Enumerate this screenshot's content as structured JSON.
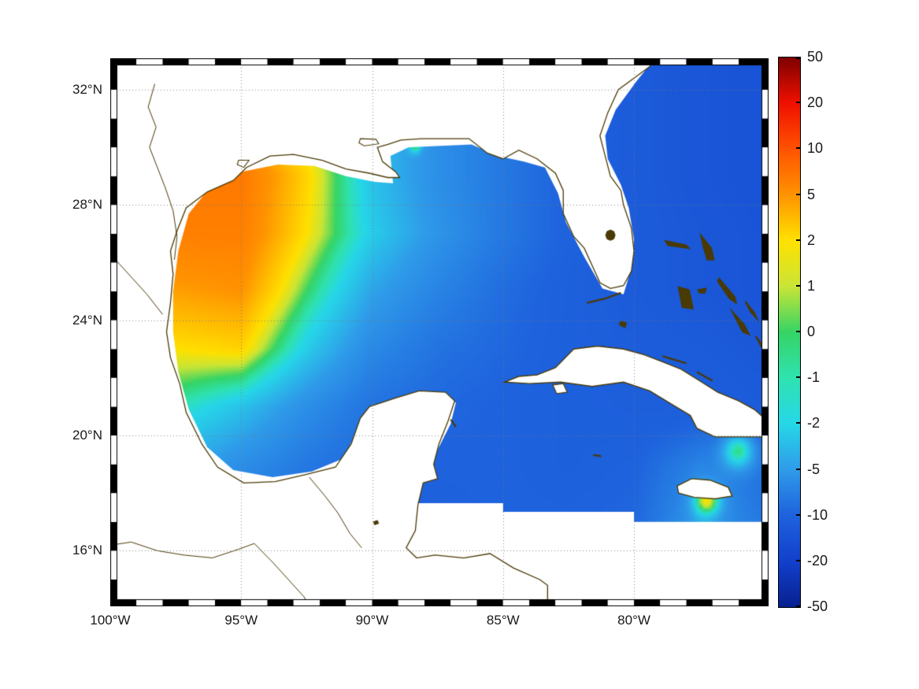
{
  "figure": {
    "background": "#ffffff",
    "coast_color": "#4a3a05",
    "grid_color": "#828282",
    "label_color": "#191919",
    "frame_color": "#000000"
  },
  "axes": {
    "lon_min": -100,
    "lon_max": -74.86,
    "lat_min": 14.07,
    "lat_max": 33.09,
    "lat_tick_values": [
      32,
      28,
      24,
      20,
      16
    ],
    "lat_tick_labels": [
      "32°N",
      "28°N",
      "24°N",
      "20°N",
      "16°N"
    ],
    "lon_tick_values": [
      -100,
      -95,
      -90,
      -85,
      -80
    ],
    "lon_tick_labels": [
      "100°W",
      "95°W",
      "90°W",
      "85°W",
      "80°W"
    ]
  },
  "colorbar": {
    "tick_labels": [
      "50",
      "20",
      "10",
      "5",
      "2",
      "1",
      "0",
      "-1",
      "-2",
      "-5",
      "-10",
      "-20",
      "-50"
    ],
    "tick_values": [
      50,
      20,
      10,
      5,
      2,
      1,
      0,
      -1,
      -2,
      -5,
      -10,
      -20,
      -50
    ],
    "tick_colors": [
      "#7e0000",
      "#f01000",
      "#ff5200",
      "#ff9300",
      "#ffe100",
      "#c9e536",
      "#35d465",
      "#2fe2b0",
      "#26d7e8",
      "#2f9be9",
      "#1e62dd",
      "#1240cc",
      "#082090"
    ]
  },
  "chart_data": {
    "type": "heatmap",
    "title": "",
    "region": "Gulf of Mexico, western Caribbean and adjacent Atlantic",
    "colorscale": "nonlinear diverging scale, evenly spaced ticks at [50,20,10,5,2,1,0,-1,-2,-5,-10,-20,-50]",
    "features_summary": "Positive anomaly (orange, about +5 to +7) over the northwestern Gulf of Mexico; near-zero yellow-green transition band running SW-NE from about (97W,23N) to (92W,30N); weakly negative cyan band; uniformly negative (blue, about -8 to -15) eastern Gulf, Caribbean and Atlantic; small positive spots near (76W,19.5N), (77.2W,17.8N) and at the coast near (88.3W,30N); white areas are land or no data, south boundary of data steps near 17-17.6N.",
    "grid": {
      "lons": [
        -100,
        -97.5,
        -95,
        -92.5,
        -90,
        -87.5,
        -85,
        -82.5,
        -80,
        -77.5,
        -75
      ],
      "lats": [
        33,
        31,
        29,
        27,
        25,
        23,
        21,
        19,
        17,
        15
      ],
      "values": [
        [
          5,
          5,
          3,
          0,
          -3,
          -6,
          -8,
          -10,
          -12,
          -13.5,
          -14.5
        ],
        [
          6,
          6,
          4.5,
          1,
          -3,
          -6,
          -8,
          -10,
          -12,
          -13.5,
          -14.5
        ],
        [
          6.5,
          7,
          7,
          2.5,
          -3,
          -6,
          -8,
          -10,
          -12,
          -13.5,
          -14.5
        ],
        [
          6,
          6.5,
          6.5,
          2,
          -2.5,
          -5.5,
          -8,
          -10,
          -12,
          -13,
          -14
        ],
        [
          4,
          4.5,
          5,
          0,
          -4.5,
          -7,
          -9,
          -10.5,
          -12,
          -13,
          -14
        ],
        [
          2,
          2,
          2.5,
          -2.5,
          -6.5,
          -8.5,
          -9.5,
          -10.5,
          -11.5,
          -12,
          -13
        ],
        [
          0,
          -1,
          -3,
          -6,
          -8.5,
          -9.5,
          -10,
          -10.5,
          -11,
          -11,
          -12
        ],
        [
          -2,
          -4,
          -6,
          -8,
          -9.5,
          -10,
          -10,
          -10.5,
          -10,
          -7,
          -9
        ],
        [
          -4,
          -6,
          -8,
          -9,
          -10,
          -10.5,
          -10,
          -10,
          -9.5,
          -5,
          -8
        ],
        [
          -5,
          -7,
          -9,
          -10,
          -10.5,
          -11,
          -10.5,
          -10,
          -9.5,
          -7,
          -9
        ]
      ]
    },
    "spots": [
      {
        "lon": -88.35,
        "lat": 30.02,
        "amp": 5,
        "sigma": 0.16
      },
      {
        "lon": -76.0,
        "lat": 19.5,
        "amp": 8.5,
        "sigma": 0.5
      },
      {
        "lon": -77.2,
        "lat": 17.75,
        "amp": 8,
        "sigma": 0.4
      }
    ],
    "data_region": [
      [
        -79.1,
        33.2
      ],
      [
        -74.7,
        33.2
      ],
      [
        -74.7,
        17.0
      ],
      [
        -80.0,
        17.0
      ],
      [
        -80.0,
        17.35
      ],
      [
        -85.0,
        17.35
      ],
      [
        -85.0,
        17.65
      ],
      [
        -89.3,
        17.65
      ],
      [
        -88.4,
        18.0
      ],
      [
        -87.8,
        18.6
      ],
      [
        -87.5,
        19.5
      ],
      [
        -87.0,
        20.4
      ],
      [
        -86.8,
        21.15
      ],
      [
        -87.6,
        21.25
      ],
      [
        -88.8,
        21.3
      ],
      [
        -90.0,
        21.05
      ],
      [
        -90.5,
        20.3
      ],
      [
        -91.1,
        19.2
      ],
      [
        -92.3,
        18.75
      ],
      [
        -93.8,
        18.55
      ],
      [
        -95.3,
        18.8
      ],
      [
        -96.3,
        19.6
      ],
      [
        -97.0,
        20.9
      ],
      [
        -97.4,
        22.2
      ],
      [
        -97.6,
        23.6
      ],
      [
        -97.6,
        25.0
      ],
      [
        -97.4,
        26.4
      ],
      [
        -97.0,
        27.7
      ],
      [
        -96.2,
        28.6
      ],
      [
        -95.0,
        29.15
      ],
      [
        -93.6,
        29.4
      ],
      [
        -92.2,
        29.35
      ],
      [
        -91.0,
        29.0
      ],
      [
        -89.9,
        28.8
      ],
      [
        -89.2,
        28.75
      ],
      [
        -89.3,
        29.7
      ],
      [
        -88.6,
        30.0
      ],
      [
        -87.4,
        30.05
      ],
      [
        -86.2,
        30.1
      ],
      [
        -85.2,
        29.7
      ],
      [
        -84.2,
        29.5
      ],
      [
        -83.4,
        29.3
      ],
      [
        -82.9,
        28.4
      ],
      [
        -82.6,
        27.4
      ],
      [
        -81.9,
        26.2
      ],
      [
        -81.2,
        25.1
      ],
      [
        -80.4,
        24.9
      ],
      [
        -80.1,
        25.8
      ],
      [
        -80.0,
        26.8
      ],
      [
        -80.2,
        27.9
      ],
      [
        -80.5,
        28.7
      ],
      [
        -81.0,
        29.6
      ],
      [
        -81.1,
        30.4
      ],
      [
        -80.7,
        31.3
      ],
      [
        -79.9,
        32.3
      ]
    ]
  },
  "geography": {
    "mainland": [
      [
        -100.3,
        33.3
      ],
      [
        -79.0,
        33.3
      ],
      [
        -79.4,
        32.8
      ],
      [
        -80.0,
        32.4
      ],
      [
        -80.6,
        32.0
      ],
      [
        -81.0,
        31.2
      ],
      [
        -81.3,
        30.4
      ],
      [
        -81.1,
        29.7
      ],
      [
        -80.9,
        29.0
      ],
      [
        -80.5,
        28.5
      ],
      [
        -80.4,
        28.0
      ],
      [
        -80.1,
        27.2
      ],
      [
        -80.0,
        26.4
      ],
      [
        -80.1,
        25.7
      ],
      [
        -80.4,
        25.2
      ],
      [
        -80.9,
        25.1
      ],
      [
        -81.3,
        25.3
      ],
      [
        -81.6,
        25.9
      ],
      [
        -81.9,
        26.5
      ],
      [
        -82.3,
        26.9
      ],
      [
        -82.7,
        27.7
      ],
      [
        -82.7,
        28.5
      ],
      [
        -83.0,
        29.1
      ],
      [
        -83.7,
        29.6
      ],
      [
        -84.4,
        29.9
      ],
      [
        -85.0,
        29.6
      ],
      [
        -85.6,
        29.8
      ],
      [
        -86.3,
        30.3
      ],
      [
        -87.3,
        30.3
      ],
      [
        -88.1,
        30.3
      ],
      [
        -88.9,
        30.25
      ],
      [
        -89.4,
        30.1
      ],
      [
        -89.8,
        30.0
      ],
      [
        -89.6,
        29.5
      ],
      [
        -89.1,
        29.15
      ],
      [
        -88.95,
        28.95
      ],
      [
        -89.4,
        28.95
      ],
      [
        -90.1,
        29.1
      ],
      [
        -91.0,
        29.25
      ],
      [
        -91.9,
        29.55
      ],
      [
        -93.0,
        29.75
      ],
      [
        -93.9,
        29.7
      ],
      [
        -94.8,
        29.3
      ],
      [
        -95.3,
        28.85
      ],
      [
        -96.3,
        28.45
      ],
      [
        -97.1,
        27.9
      ],
      [
        -97.45,
        27.1
      ],
      [
        -97.7,
        26.4
      ],
      [
        -97.6,
        25.6
      ],
      [
        -97.7,
        24.6
      ],
      [
        -97.85,
        23.6
      ],
      [
        -97.7,
        22.7
      ],
      [
        -97.35,
        21.8
      ],
      [
        -97.1,
        20.8
      ],
      [
        -96.5,
        19.7
      ],
      [
        -95.9,
        18.9
      ],
      [
        -94.9,
        18.35
      ],
      [
        -93.7,
        18.4
      ],
      [
        -92.5,
        18.65
      ],
      [
        -91.4,
        18.9
      ],
      [
        -90.8,
        19.7
      ],
      [
        -90.45,
        20.6
      ],
      [
        -90.1,
        21.0
      ],
      [
        -89.1,
        21.3
      ],
      [
        -88.2,
        21.55
      ],
      [
        -87.2,
        21.5
      ],
      [
        -86.85,
        21.2
      ],
      [
        -87.1,
        20.5
      ],
      [
        -87.45,
        19.7
      ],
      [
        -87.65,
        19.0
      ],
      [
        -87.5,
        18.5
      ],
      [
        -88.05,
        18.35
      ],
      [
        -88.25,
        17.6
      ],
      [
        -88.35,
        16.7
      ],
      [
        -88.7,
        16.1
      ],
      [
        -88.3,
        15.75
      ],
      [
        -87.6,
        15.85
      ],
      [
        -86.5,
        15.75
      ],
      [
        -85.5,
        15.9
      ],
      [
        -84.6,
        15.4
      ],
      [
        -83.6,
        15.0
      ],
      [
        -83.3,
        14.8
      ],
      [
        -83.3,
        13.9
      ],
      [
        -100.3,
        13.9
      ]
    ],
    "cuba": [
      [
        -84.95,
        21.85
      ],
      [
        -84.4,
        22.05
      ],
      [
        -83.7,
        22.1
      ],
      [
        -83.0,
        22.35
      ],
      [
        -82.3,
        23.0
      ],
      [
        -81.4,
        23.1
      ],
      [
        -80.4,
        23.0
      ],
      [
        -79.6,
        22.8
      ],
      [
        -78.9,
        22.55
      ],
      [
        -78.2,
        22.3
      ],
      [
        -77.5,
        21.9
      ],
      [
        -76.8,
        21.5
      ],
      [
        -76.0,
        21.2
      ],
      [
        -75.4,
        20.9
      ],
      [
        -74.9,
        20.5
      ],
      [
        -74.75,
        20.1
      ],
      [
        -75.1,
        19.95
      ],
      [
        -75.9,
        19.95
      ],
      [
        -76.9,
        19.95
      ],
      [
        -77.6,
        20.25
      ],
      [
        -77.85,
        20.7
      ],
      [
        -78.5,
        21.05
      ],
      [
        -79.4,
        21.55
      ],
      [
        -80.4,
        21.85
      ],
      [
        -81.6,
        21.7
      ],
      [
        -82.8,
        21.85
      ],
      [
        -84.0,
        21.8
      ]
    ],
    "isle_of_youth": [
      [
        -83.1,
        21.75
      ],
      [
        -82.7,
        21.8
      ],
      [
        -82.55,
        21.5
      ],
      [
        -82.95,
        21.45
      ]
    ],
    "jamaica": [
      [
        -78.35,
        18.25
      ],
      [
        -77.8,
        18.5
      ],
      [
        -77.1,
        18.45
      ],
      [
        -76.4,
        18.2
      ],
      [
        -76.25,
        17.9
      ],
      [
        -76.9,
        17.8
      ],
      [
        -77.7,
        17.85
      ],
      [
        -78.3,
        18.0
      ]
    ],
    "hispaniola_edge": [
      [
        [
          -74.86,
          20.1
        ],
        [
          -74.95,
          19.6
        ],
        [
          -74.9,
          19.2
        ],
        [
          -75.0,
          18.6
        ],
        [
          -74.86,
          18.45
        ]
      ],
      [
        [
          -74.86,
          18.45
        ],
        [
          -75.05,
          18.35
        ],
        [
          -74.86,
          18.2
        ]
      ]
    ],
    "bahamas": [
      [
        [
          -78.8,
          26.75
        ],
        [
          -78.0,
          26.6
        ],
        [
          -77.9,
          26.5
        ],
        [
          -78.7,
          26.6
        ]
      ],
      [
        [
          -77.45,
          26.95
        ],
        [
          -77.05,
          26.5
        ],
        [
          -76.95,
          26.1
        ],
        [
          -77.2,
          26.1
        ],
        [
          -77.35,
          26.55
        ]
      ],
      [
        [
          -78.3,
          25.15
        ],
        [
          -77.9,
          25.05
        ],
        [
          -77.75,
          24.4
        ],
        [
          -78.15,
          24.45
        ]
      ],
      [
        [
          -77.55,
          25.05
        ],
        [
          -77.25,
          25.1
        ],
        [
          -77.3,
          24.95
        ],
        [
          -77.5,
          24.95
        ]
      ],
      [
        [
          -76.75,
          25.45
        ],
        [
          -76.15,
          24.8
        ],
        [
          -76.1,
          24.6
        ],
        [
          -76.35,
          24.75
        ],
        [
          -76.8,
          25.35
        ]
      ],
      [
        [
          -75.75,
          24.65
        ],
        [
          -75.4,
          24.25
        ],
        [
          -75.3,
          24.05
        ],
        [
          -75.55,
          24.3
        ]
      ],
      [
        [
          -76.25,
          24.3
        ],
        [
          -75.8,
          23.85
        ],
        [
          -75.6,
          23.5
        ],
        [
          -75.85,
          23.6
        ]
      ],
      [
        [
          -75.35,
          23.45
        ],
        [
          -74.95,
          22.95
        ],
        [
          -74.85,
          22.75
        ],
        [
          -75.15,
          23.1
        ]
      ],
      [
        [
          -80.5,
          23.95
        ],
        [
          -80.3,
          23.9
        ],
        [
          -80.35,
          23.75
        ],
        [
          -80.55,
          23.85
        ]
      ]
    ],
    "island_strokes": [
      [
        [
          -78.9,
          22.75
        ],
        [
          -78.0,
          22.5
        ]
      ],
      [
        [
          -77.6,
          22.2
        ],
        [
          -77.0,
          21.9
        ]
      ],
      [
        [
          -87.0,
          20.55
        ],
        [
          -86.8,
          20.3
        ]
      ],
      [
        [
          -81.55,
          19.32
        ],
        [
          -81.25,
          19.28
        ]
      ],
      [
        [
          -80.5,
          24.95
        ],
        [
          -81.1,
          24.75
        ],
        [
          -81.8,
          24.6
        ]
      ]
    ],
    "lakes_outline": [
      [
        [
          -90.45,
          30.3
        ],
        [
          -89.85,
          30.28
        ],
        [
          -89.75,
          30.12
        ],
        [
          -90.3,
          30.05
        ],
        [
          -90.5,
          30.15
        ]
      ],
      [
        [
          -95.1,
          29.55
        ],
        [
          -94.7,
          29.55
        ],
        [
          -94.9,
          29.3
        ],
        [
          -95.15,
          29.4
        ]
      ]
    ],
    "lakes_filled": [
      [
        [
          -80.72,
          26.95
        ],
        [
          -80.77,
          27.08
        ],
        [
          -80.9,
          27.13
        ],
        [
          -81.03,
          27.08
        ],
        [
          -81.08,
          26.95
        ],
        [
          -81.03,
          26.82
        ],
        [
          -80.9,
          26.77
        ],
        [
          -80.77,
          26.82
        ]
      ],
      [
        [
          -89.95,
          17.0
        ],
        [
          -89.8,
          17.05
        ],
        [
          -89.75,
          16.95
        ],
        [
          -89.9,
          16.9
        ]
      ]
    ],
    "rivers": [
      [
        [
          -98.3,
          32.2
        ],
        [
          -98.55,
          31.4
        ],
        [
          -98.25,
          30.7
        ],
        [
          -98.5,
          30.0
        ],
        [
          -98.2,
          29.3
        ],
        [
          -97.9,
          28.6
        ],
        [
          -97.6,
          27.8
        ],
        [
          -97.45,
          26.9
        ],
        [
          -97.55,
          26.1
        ]
      ],
      [
        [
          -100.3,
          16.15
        ],
        [
          -99.2,
          16.3
        ],
        [
          -98.2,
          16.0
        ],
        [
          -97.2,
          15.85
        ],
        [
          -96.1,
          15.75
        ],
        [
          -95.1,
          16.05
        ],
        [
          -94.5,
          16.25
        ],
        [
          -93.8,
          15.6
        ],
        [
          -93.2,
          15.0
        ],
        [
          -92.6,
          14.4
        ],
        [
          -92.3,
          13.9
        ]
      ],
      [
        [
          -92.4,
          18.55
        ],
        [
          -91.8,
          17.9
        ],
        [
          -91.3,
          17.3
        ],
        [
          -90.85,
          16.6
        ],
        [
          -90.4,
          16.1
        ]
      ],
      [
        [
          -99.9,
          26.2
        ],
        [
          -99.2,
          25.5
        ],
        [
          -98.6,
          24.9
        ],
        [
          -98.0,
          24.2
        ]
      ]
    ]
  }
}
